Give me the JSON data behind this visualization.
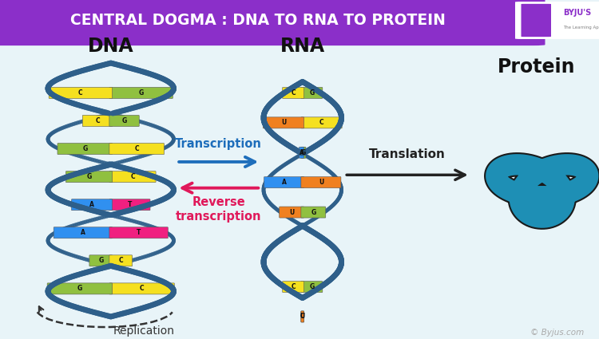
{
  "title": "CENTRAL DOGMA : DNA TO RNA TO PROTEIN",
  "title_bg": "#8B2FC9",
  "title_color": "#FFFFFF",
  "bg_color": "#E8F4F8",
  "label_dna": "DNA",
  "label_rna": "RNA",
  "label_protein": "Protein",
  "label_transcription": "Transcription",
  "label_reverse": "Reverse\ntranscription",
  "label_translation": "Translation",
  "label_replication": "Replication",
  "label_copyright": "© Byjus.com",
  "dna_color": "#2E5F8A",
  "rna_color": "#2E5F8A",
  "protein_color": "#1E8FB5",
  "transcription_color": "#1E6EBB",
  "reverse_color": "#E0185A",
  "translation_color": "#222222",
  "arrow_color": "#222222",
  "base_colors": {
    "G": "#90C040",
    "C": "#F5E020",
    "A": "#3090F0",
    "T": "#F02080",
    "U": "#F08020"
  }
}
